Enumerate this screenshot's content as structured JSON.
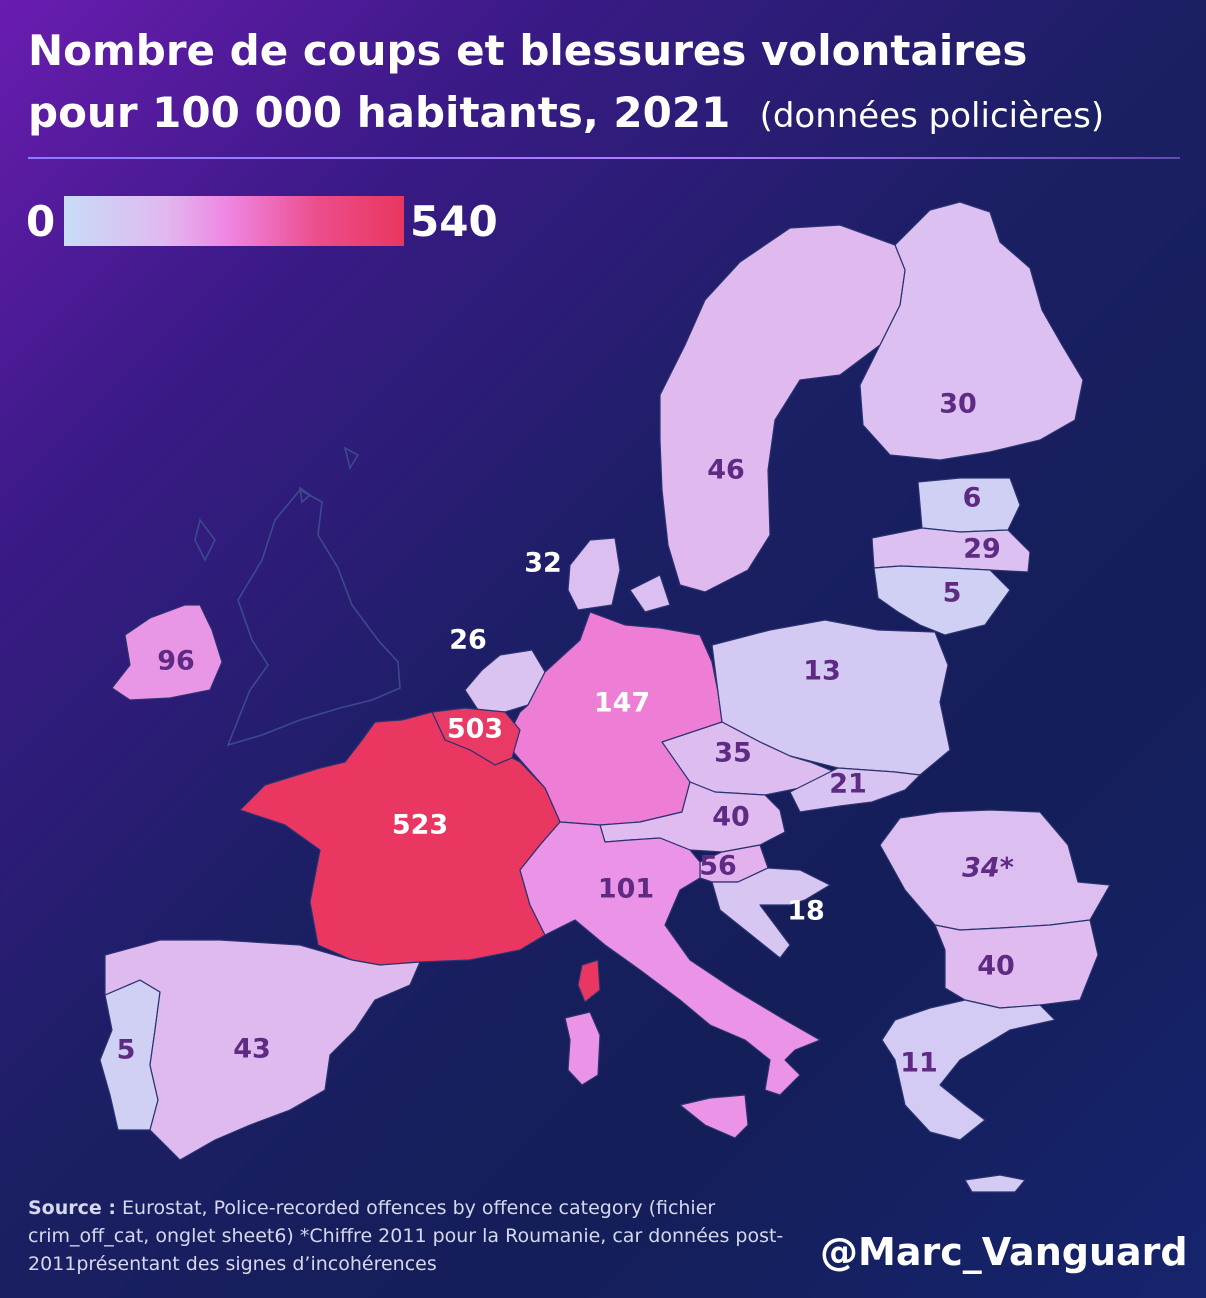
{
  "title": {
    "line1": "Nombre de coups et blessures volontaires",
    "line2": "pour 100 000 habitants, 2021",
    "subtitle": "(données policières)"
  },
  "legend": {
    "min": "0",
    "max": "540",
    "color_min": "#c7dcf7",
    "color_max": "#e9365f"
  },
  "countries": [
    {
      "name": "Finlande",
      "label": "30",
      "value": 30
    },
    {
      "name": "Suède",
      "label": "46",
      "value": 46
    },
    {
      "name": "Estonie",
      "label": "6",
      "value": 6
    },
    {
      "name": "Lettonie",
      "label": "29",
      "value": 29
    },
    {
      "name": "Lituanie",
      "label": "5",
      "value": 5
    },
    {
      "name": "Danemark",
      "label": "32",
      "value": 32
    },
    {
      "name": "Pays-Bas",
      "label": "26",
      "value": 26
    },
    {
      "name": "Irlande",
      "label": "96",
      "value": 96
    },
    {
      "name": "Allemagne",
      "label": "147",
      "value": 147
    },
    {
      "name": "Pologne",
      "label": "13",
      "value": 13
    },
    {
      "name": "Belgique",
      "label": "503",
      "value": 503
    },
    {
      "name": "Tchéquie",
      "label": "35",
      "value": 35
    },
    {
      "name": "Slovaquie",
      "label": "21",
      "value": 21
    },
    {
      "name": "Autriche",
      "label": "40",
      "value": 40
    },
    {
      "name": "France",
      "label": "523",
      "value": 523
    },
    {
      "name": "Slovénie",
      "label": "56",
      "value": 56
    },
    {
      "name": "Roumanie",
      "label": "34*",
      "value": 34
    },
    {
      "name": "Italie",
      "label": "101",
      "value": 101
    },
    {
      "name": "Croatie",
      "label": "18",
      "value": 18
    },
    {
      "name": "Bulgarie",
      "label": "40",
      "value": 40
    },
    {
      "name": "Portugal",
      "label": "5",
      "value": 5
    },
    {
      "name": "Espagne",
      "label": "43",
      "value": 43
    },
    {
      "name": "Grèce",
      "label": "11",
      "value": 11
    }
  ],
  "source": {
    "label": "Source :",
    "text": "Eurostat, Police-recorded offences by offence category (fichier crim_off_cat, onglet sheet6) *Chiffre 2011 pour la Roumanie, car données post-2011présentant des signes d’incohérences"
  },
  "handle": "@Marc_Vanguard"
}
